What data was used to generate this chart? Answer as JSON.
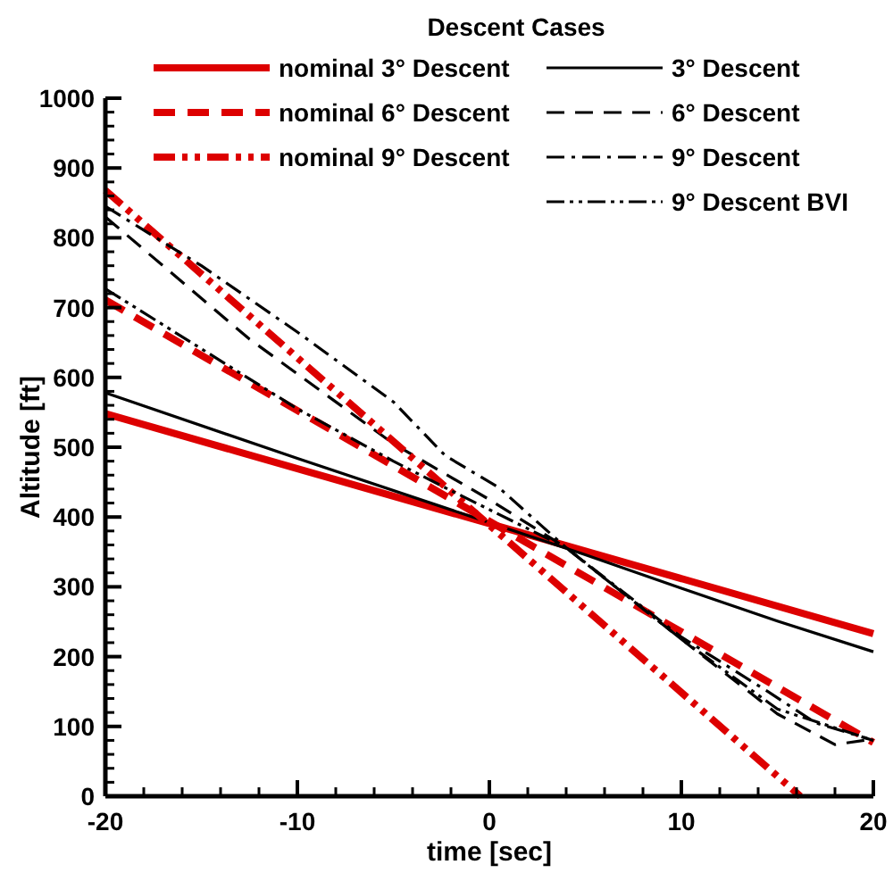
{
  "chart_data": {
    "type": "line",
    "xlabel": "time [sec]",
    "ylabel": "Altitude [ft]",
    "legend_title": "Descent Cases",
    "legend": "top",
    "xlim": [
      -20,
      20
    ],
    "xticks": [
      -20,
      -10,
      0,
      10,
      20
    ],
    "ylim": [
      0,
      1000
    ],
    "yticks": [
      0,
      100,
      200,
      300,
      400,
      500,
      600,
      700,
      800,
      900,
      1000
    ],
    "grid": false,
    "series": [
      {
        "name": "nominal 3° Descent",
        "color": "#dd0000",
        "line_style": "solid",
        "x": [
          -20,
          20
        ],
        "values": [
          548,
          233
        ]
      },
      {
        "name": "3° Descent",
        "color": "#000000",
        "line_style": "solid",
        "x": [
          -20,
          -10,
          0,
          5,
          10,
          15,
          20
        ],
        "values": [
          578,
          484,
          392,
          346,
          298,
          251,
          207
        ]
      },
      {
        "name": "nominal 6° Descent",
        "color": "#dd0000",
        "line_style": "dashed",
        "x": [
          -20,
          20
        ],
        "values": [
          711,
          77
        ]
      },
      {
        "name": "6° Descent",
        "color": "#000000",
        "line_style": "dashed",
        "x": [
          -20,
          -12.5,
          -10,
          -5,
          0,
          4,
          10,
          15,
          18,
          20
        ],
        "values": [
          830,
          655,
          605,
          505,
          425,
          356,
          225,
          118,
          74,
          82
        ]
      },
      {
        "name": "nominal 9° Descent",
        "color": "#dd0000",
        "line_style": "dashdotdot",
        "x": [
          -20,
          16.2
        ],
        "values": [
          868,
          0
        ]
      },
      {
        "name": "9° Descent",
        "color": "#000000",
        "line_style": "dashdot",
        "x": [
          -20,
          -15,
          -10,
          -5,
          -2.3,
          0.5,
          4,
          10,
          14.5,
          17,
          20
        ],
        "values": [
          845,
          760,
          665,
          565,
          488,
          442,
          356,
          228,
          150,
          105,
          80
        ]
      },
      {
        "name": "9° Descent BVI",
        "color": "#000000",
        "line_style": "dashdotdot",
        "x": [
          -20,
          -10,
          -5,
          -2.3,
          4,
          10,
          15,
          20
        ],
        "values": [
          727,
          555,
          480,
          442,
          356,
          225,
          125,
          80
        ]
      }
    ]
  }
}
